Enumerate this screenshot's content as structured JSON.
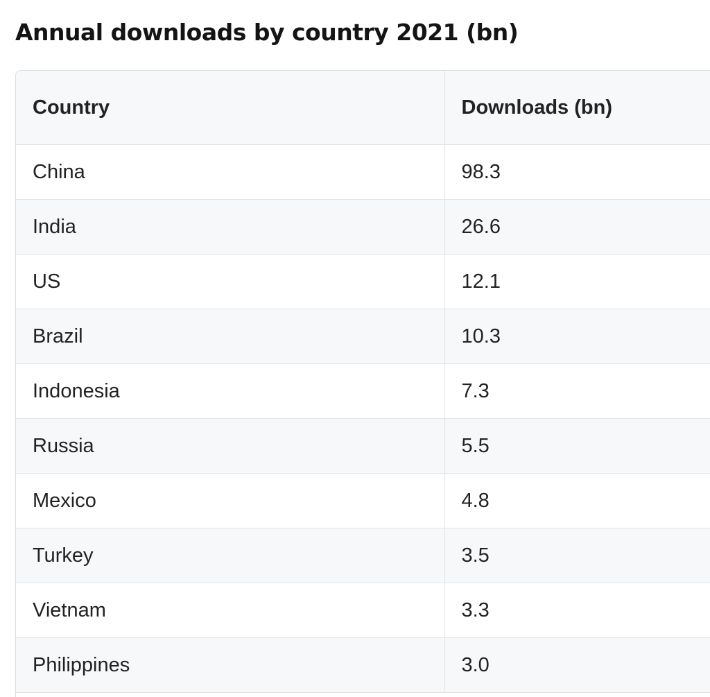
{
  "page": {
    "title": "Annual downloads by country 2021 (bn)"
  },
  "table": {
    "headers": [
      "Country",
      "Downloads (bn)"
    ],
    "rows": [
      {
        "country": "China",
        "downloads": "98.3"
      },
      {
        "country": "India",
        "downloads": "26.6"
      },
      {
        "country": "US",
        "downloads": "12.1"
      },
      {
        "country": "Brazil",
        "downloads": "10.3"
      },
      {
        "country": "Indonesia",
        "downloads": "7.3"
      },
      {
        "country": "Russia",
        "downloads": "5.5"
      },
      {
        "country": "Mexico",
        "downloads": "4.8"
      },
      {
        "country": "Turkey",
        "downloads": "3.5"
      },
      {
        "country": "Vietnam",
        "downloads": "3.3"
      },
      {
        "country": "Philippines",
        "downloads": "3.0"
      }
    ]
  },
  "colors": {
    "header_bg": "#f7f8fa",
    "border": "#dcdde0",
    "text": "#222222"
  }
}
